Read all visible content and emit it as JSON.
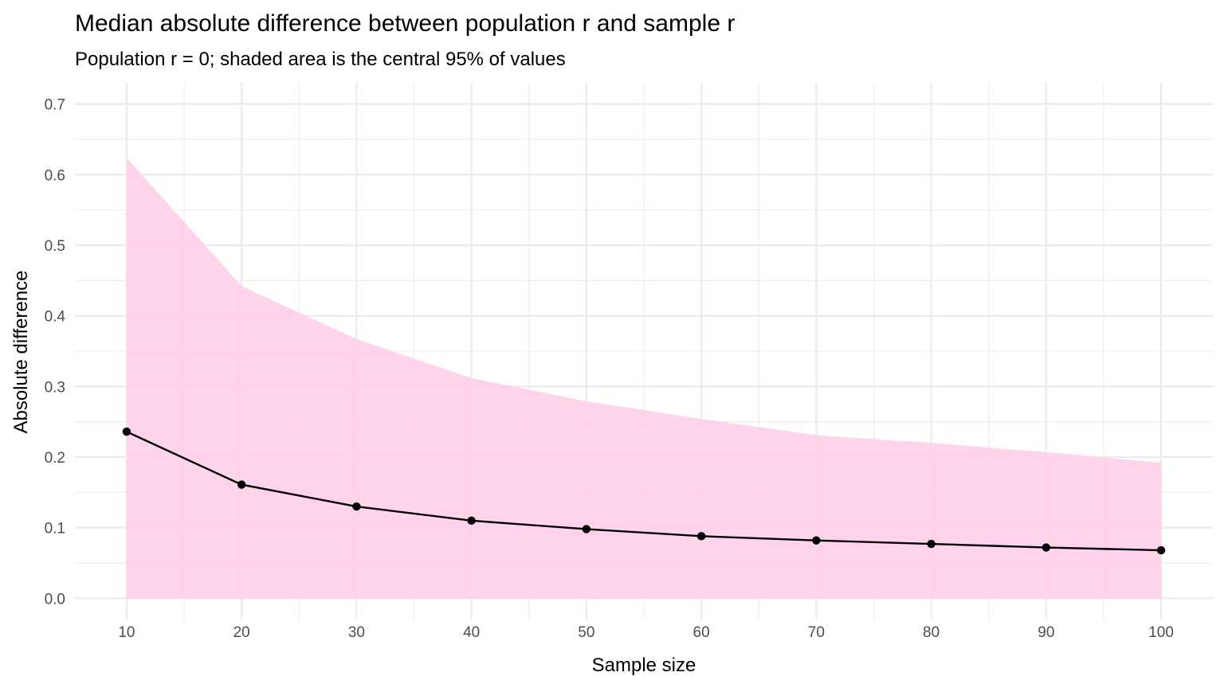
{
  "chart_data": {
    "type": "line",
    "title": "Median absolute difference between population r and sample r",
    "subtitle": "Population r = 0; shaded area is the central 95% of values",
    "xlabel": "Sample size",
    "ylabel": "Absolute difference",
    "x": [
      10,
      20,
      30,
      40,
      50,
      60,
      70,
      80,
      90,
      100
    ],
    "series": [
      {
        "values": [
          0.236,
          0.161,
          0.13,
          0.11,
          0.098,
          0.088,
          0.082,
          0.077,
          0.072,
          0.068
        ]
      }
    ],
    "band": {
      "lower": [
        0,
        0,
        0,
        0,
        0,
        0,
        0,
        0,
        0,
        0
      ],
      "upper": [
        0.624,
        0.442,
        0.367,
        0.312,
        0.279,
        0.254,
        0.231,
        0.22,
        0.207,
        0.192
      ]
    },
    "x_ticks": [
      "10",
      "20",
      "30",
      "40",
      "50",
      "60",
      "70",
      "80",
      "90",
      "100"
    ],
    "y_ticks": [
      "0.0",
      "0.1",
      "0.2",
      "0.3",
      "0.4",
      "0.5",
      "0.6",
      "0.7"
    ],
    "xlim": [
      5.5,
      104.5
    ],
    "ylim": [
      -0.03,
      0.73
    ],
    "grid": true,
    "colors": {
      "band": "#ffd1e9",
      "line": "#000000",
      "point": "#000000"
    }
  }
}
